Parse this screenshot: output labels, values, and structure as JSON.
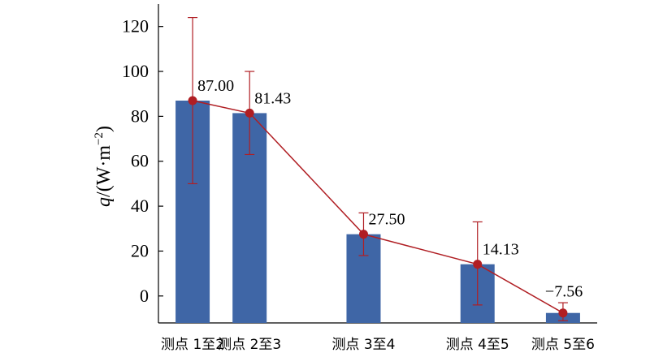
{
  "chart_data": {
    "type": "bar",
    "categories": [
      "测点 1至2",
      "测点 2至3",
      "测点 3至4",
      "测点 4至5",
      "测点 5至6"
    ],
    "series": [
      {
        "values": [
          87.0,
          81.43,
          27.5,
          14.13,
          -7.56
        ]
      }
    ],
    "error_low": [
      50,
      63,
      18,
      -4,
      -11
    ],
    "error_high": [
      124,
      100,
      37,
      33,
      -3
    ],
    "data_labels": [
      "87.00",
      "81.43",
      "27.50",
      "14.13",
      "−7.56"
    ],
    "ylabel": {
      "var": "q",
      "rest": "/(W·m",
      "sup": "−2",
      "close": ")"
    },
    "yticks": [
      0,
      20,
      40,
      60,
      80,
      100,
      120
    ],
    "ylim": [
      -12,
      130
    ],
    "category_slots": [
      1,
      2,
      4,
      6,
      7.5
    ],
    "x_range": [
      0.4,
      8.1
    ],
    "grid": false,
    "colors": {
      "bar": "#3f66a6",
      "line": "#b01e23",
      "marker": "#b01e23",
      "axis": "#000000"
    }
  }
}
